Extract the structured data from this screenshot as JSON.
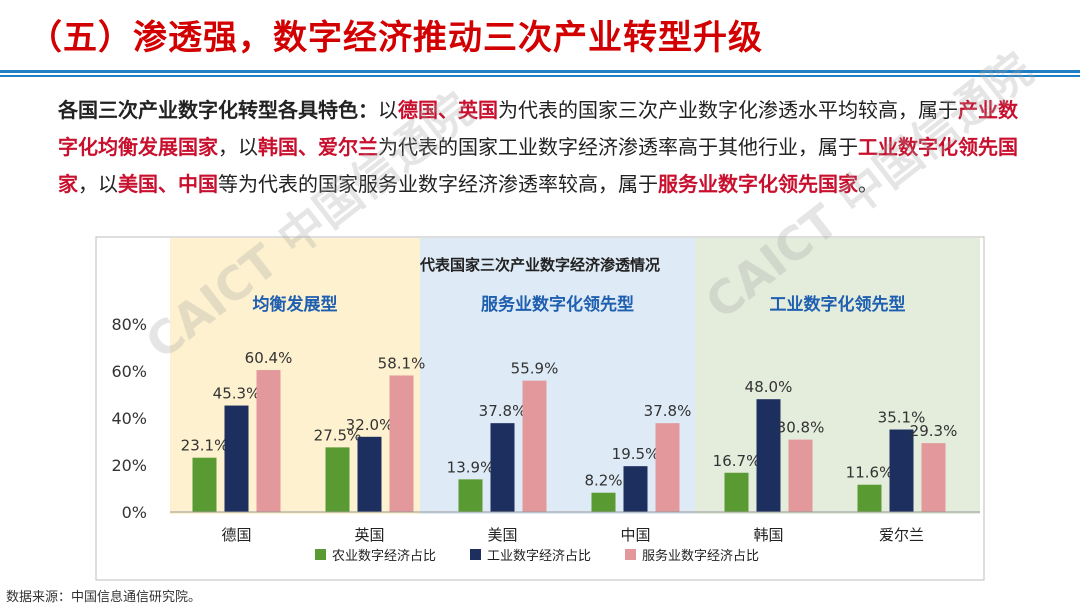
{
  "title": "（五）渗透强，数字经济推动三次产业转型升级",
  "intro": {
    "lead": "各国三次产业数字化转型各具特色：",
    "t1": "以",
    "de": "德国、英国",
    "t2": "为代表的国家三次产业数字化渗透水平均较高，属于",
    "c1": "产业数字化均衡发展国家",
    "t3": "，以",
    "kr": "韩国、爱尔兰",
    "t4": "为代表的国家工业数字经济渗透率高于其他行业，属于",
    "c2": "工业数字化领先国家",
    "t5": "，以",
    "us": "美国、中国",
    "t6": "等为代表的国家服务业数字经济渗透率较高，属于",
    "c3": "服务业数字化领先国家",
    "t7": "。"
  },
  "watermark": {
    "text": "CAICT 中国信通院"
  },
  "source": "数据来源：中国信息通信研究院。",
  "colors": {
    "agri": "#5a9a33",
    "industry": "#1c2f5e",
    "service": "#e3999b",
    "band_balanced": "#fdf1cf",
    "band_service": "#deeaf5",
    "band_industry": "#e4ecdc",
    "group_label": "#1f5fb0",
    "title_red": "#d20000"
  },
  "chart_data": {
    "type": "bar",
    "title": "代表国家三次产业数字经济渗透情况",
    "categories": [
      "德国",
      "英国",
      "美国",
      "中国",
      "韩国",
      "爱尔兰"
    ],
    "series": [
      {
        "name": "农业数字经济占比",
        "values": [
          23.1,
          27.5,
          13.9,
          8.2,
          16.7,
          11.6
        ]
      },
      {
        "name": "工业数字经济占比",
        "values": [
          45.3,
          32.0,
          37.8,
          19.5,
          48.0,
          35.1
        ]
      },
      {
        "name": "服务业数字经济占比",
        "values": [
          60.4,
          58.1,
          55.9,
          37.8,
          30.8,
          29.3
        ]
      }
    ],
    "value_labels": [
      [
        "23.1%",
        "27.5%",
        "13.9%",
        "8.2%",
        "16.7%",
        "11.6%"
      ],
      [
        "45.3%",
        "32.0%",
        "37.8%",
        "19.5%",
        "48.0%",
        "35.1%"
      ],
      [
        "60.4%",
        "58.1%",
        "55.9%",
        "37.8%",
        "30.8%",
        "29.3%"
      ]
    ],
    "groups": [
      {
        "label": "均衡发展型",
        "categories": [
          "德国",
          "英国"
        ]
      },
      {
        "label": "服务业数字化领先型",
        "categories": [
          "美国",
          "中国"
        ]
      },
      {
        "label": "工业数字化领先型",
        "categories": [
          "韩国",
          "爱尔兰"
        ]
      }
    ],
    "ylim": [
      0,
      80
    ],
    "yticks": [
      "0%",
      "20%",
      "40%",
      "60%",
      "80%"
    ],
    "grid": false,
    "legend_position": "bottom"
  }
}
